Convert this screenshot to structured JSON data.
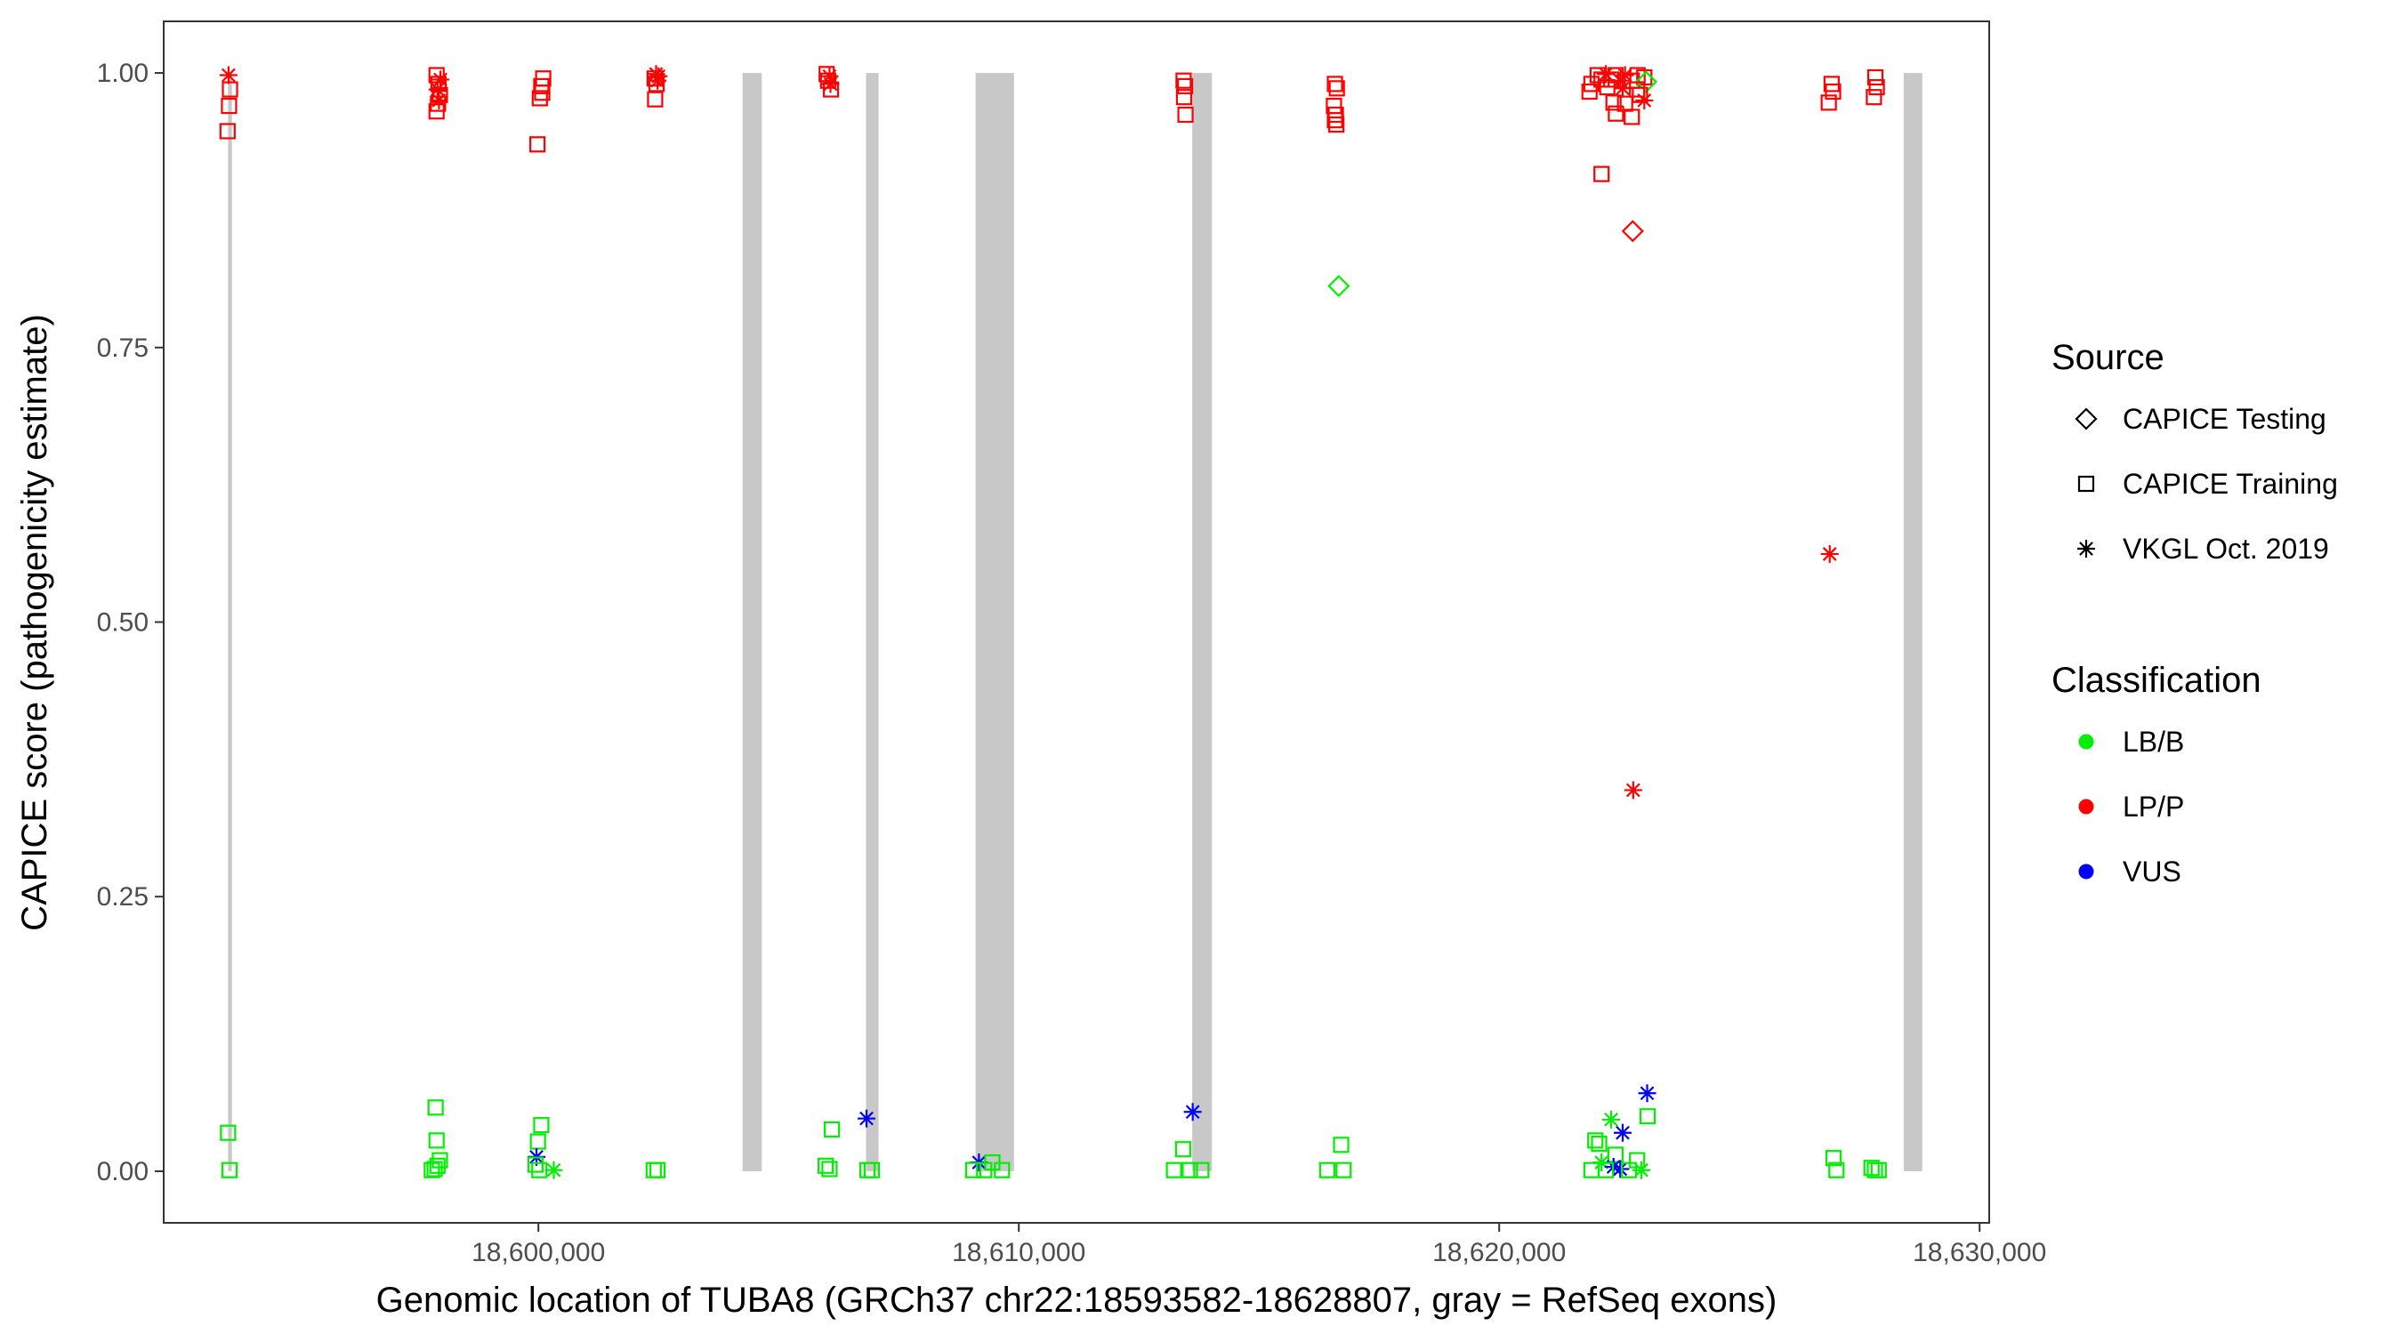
{
  "chart_data": {
    "type": "scatter",
    "xlabel": "Genomic location of TUBA8 (GRCh37 chr22:18593582-18628807, gray = RefSeq exons)",
    "ylabel": "CAPICE score (pathogenicity estimate)",
    "xlim": [
      18592200,
      18630200
    ],
    "ylim": [
      -0.047,
      1.047
    ],
    "x_ticks": [
      18600000,
      18610000,
      18620000,
      18630000
    ],
    "x_tick_labels": [
      "18,600,000",
      "18,610,000",
      "18,620,000",
      "18,630,000"
    ],
    "y_ticks": [
      0,
      0.25,
      0.5,
      0.75,
      1
    ],
    "y_tick_labels": [
      "0.00",
      "0.25",
      "0.50",
      "0.75",
      "1.00"
    ],
    "grid": false,
    "exon_color": "#c8c8c8",
    "exons": [
      {
        "start": 18593540,
        "end": 18593620
      },
      {
        "start": 18604250,
        "end": 18604650
      },
      {
        "start": 18606820,
        "end": 18607080
      },
      {
        "start": 18609100,
        "end": 18609900
      },
      {
        "start": 18613610,
        "end": 18614020
      },
      {
        "start": 18628420,
        "end": 18628807
      }
    ],
    "legend": {
      "position": "right",
      "source_title": "Source",
      "source_items": [
        {
          "label": "CAPICE Testing",
          "shape": "diamond"
        },
        {
          "label": "CAPICE Training",
          "shape": "square"
        },
        {
          "label": "VKGL Oct. 2019",
          "shape": "asterisk"
        }
      ],
      "class_title": "Classification",
      "class_items": [
        {
          "label": "LB/B",
          "color": "#00ee00"
        },
        {
          "label": "LP/P",
          "color": "#ff0000"
        },
        {
          "label": "VUS",
          "color": "#0000ff"
        }
      ]
    },
    "colors": {
      "LB/B": "#00ee00",
      "LP/P": "#ff0000",
      "VUS": "#0000ff"
    },
    "points": [
      {
        "x": 18593550,
        "y": 0.998,
        "shape": "asterisk",
        "class": "LP/P"
      },
      {
        "x": 18593580,
        "y": 0.985,
        "shape": "square",
        "class": "LP/P"
      },
      {
        "x": 18593560,
        "y": 0.97,
        "shape": "square",
        "class": "LP/P"
      },
      {
        "x": 18593530,
        "y": 0.947,
        "shape": "square",
        "class": "LP/P"
      },
      {
        "x": 18593540,
        "y": 0.035,
        "shape": "square",
        "class": "LB/B"
      },
      {
        "x": 18593570,
        "y": 0.001,
        "shape": "square",
        "class": "LB/B"
      },
      {
        "x": 18597880,
        "y": 0.998,
        "shape": "square",
        "class": "LP/P"
      },
      {
        "x": 18597960,
        "y": 0.994,
        "shape": "asterisk",
        "class": "LP/P"
      },
      {
        "x": 18597920,
        "y": 0.99,
        "shape": "square",
        "class": "LP/P"
      },
      {
        "x": 18597900,
        "y": 0.985,
        "shape": "asterisk",
        "class": "LP/P"
      },
      {
        "x": 18597950,
        "y": 0.98,
        "shape": "square",
        "class": "LP/P"
      },
      {
        "x": 18597930,
        "y": 0.975,
        "shape": "asterisk",
        "class": "LP/P"
      },
      {
        "x": 18597910,
        "y": 0.972,
        "shape": "square",
        "class": "LP/P"
      },
      {
        "x": 18597880,
        "y": 0.965,
        "shape": "square",
        "class": "LP/P"
      },
      {
        "x": 18597860,
        "y": 0.058,
        "shape": "square",
        "class": "LB/B"
      },
      {
        "x": 18597880,
        "y": 0.028,
        "shape": "square",
        "class": "LB/B"
      },
      {
        "x": 18597950,
        "y": 0.01,
        "shape": "square",
        "class": "LB/B"
      },
      {
        "x": 18597900,
        "y": 0.005,
        "shape": "square",
        "class": "LB/B"
      },
      {
        "x": 18597840,
        "y": 0.002,
        "shape": "square",
        "class": "LB/B"
      },
      {
        "x": 18597780,
        "y": 0.001,
        "shape": "square",
        "class": "LB/B"
      },
      {
        "x": 18600100,
        "y": 0.995,
        "shape": "square",
        "class": "LP/P"
      },
      {
        "x": 18600060,
        "y": 0.988,
        "shape": "square",
        "class": "LP/P"
      },
      {
        "x": 18600080,
        "y": 0.982,
        "shape": "square",
        "class": "LP/P"
      },
      {
        "x": 18600030,
        "y": 0.977,
        "shape": "square",
        "class": "LP/P"
      },
      {
        "x": 18599980,
        "y": 0.935,
        "shape": "square",
        "class": "LP/P"
      },
      {
        "x": 18600060,
        "y": 0.042,
        "shape": "square",
        "class": "LB/B"
      },
      {
        "x": 18599990,
        "y": 0.027,
        "shape": "square",
        "class": "LB/B"
      },
      {
        "x": 18599960,
        "y": 0.013,
        "shape": "asterisk",
        "class": "VUS"
      },
      {
        "x": 18599940,
        "y": 0.006,
        "shape": "square",
        "class": "LB/B"
      },
      {
        "x": 18600020,
        "y": 0.001,
        "shape": "square",
        "class": "LB/B"
      },
      {
        "x": 18600320,
        "y": 0.001,
        "shape": "asterisk",
        "class": "LB/B"
      },
      {
        "x": 18602450,
        "y": 0.999,
        "shape": "asterisk",
        "class": "LP/P"
      },
      {
        "x": 18602500,
        "y": 0.997,
        "shape": "asterisk",
        "class": "LP/P"
      },
      {
        "x": 18602420,
        "y": 0.995,
        "shape": "square",
        "class": "LP/P"
      },
      {
        "x": 18602480,
        "y": 0.993,
        "shape": "asterisk",
        "class": "LP/P"
      },
      {
        "x": 18602460,
        "y": 0.99,
        "shape": "square",
        "class": "LP/P"
      },
      {
        "x": 18602430,
        "y": 0.976,
        "shape": "square",
        "class": "LP/P"
      },
      {
        "x": 18602400,
        "y": 0.001,
        "shape": "square",
        "class": "LB/B"
      },
      {
        "x": 18602480,
        "y": 0.001,
        "shape": "square",
        "class": "LB/B"
      },
      {
        "x": 18606000,
        "y": 0.999,
        "shape": "square",
        "class": "LP/P"
      },
      {
        "x": 18606060,
        "y": 0.997,
        "shape": "asterisk",
        "class": "LP/P"
      },
      {
        "x": 18606030,
        "y": 0.993,
        "shape": "square",
        "class": "LP/P"
      },
      {
        "x": 18606080,
        "y": 0.99,
        "shape": "asterisk",
        "class": "LP/P"
      },
      {
        "x": 18606090,
        "y": 0.985,
        "shape": "square",
        "class": "LP/P"
      },
      {
        "x": 18606110,
        "y": 0.038,
        "shape": "square",
        "class": "LB/B"
      },
      {
        "x": 18605980,
        "y": 0.005,
        "shape": "square",
        "class": "LB/B"
      },
      {
        "x": 18606060,
        "y": 0.002,
        "shape": "square",
        "class": "LB/B"
      },
      {
        "x": 18606830,
        "y": 0.048,
        "shape": "asterisk",
        "class": "VUS"
      },
      {
        "x": 18606850,
        "y": 0.001,
        "shape": "square",
        "class": "LB/B"
      },
      {
        "x": 18606940,
        "y": 0.001,
        "shape": "square",
        "class": "LB/B"
      },
      {
        "x": 18609170,
        "y": 0.008,
        "shape": "asterisk",
        "class": "VUS"
      },
      {
        "x": 18609450,
        "y": 0.008,
        "shape": "square",
        "class": "LB/B"
      },
      {
        "x": 18609280,
        "y": 0.001,
        "shape": "square",
        "class": "LB/B"
      },
      {
        "x": 18609650,
        "y": 0.001,
        "shape": "square",
        "class": "LB/B"
      },
      {
        "x": 18609050,
        "y": 0.001,
        "shape": "square",
        "class": "LB/B"
      },
      {
        "x": 18613430,
        "y": 0.993,
        "shape": "square",
        "class": "LP/P"
      },
      {
        "x": 18613460,
        "y": 0.988,
        "shape": "square",
        "class": "LP/P"
      },
      {
        "x": 18613440,
        "y": 0.978,
        "shape": "square",
        "class": "LP/P"
      },
      {
        "x": 18613470,
        "y": 0.962,
        "shape": "square",
        "class": "LP/P"
      },
      {
        "x": 18613620,
        "y": 0.054,
        "shape": "asterisk",
        "class": "VUS"
      },
      {
        "x": 18613420,
        "y": 0.02,
        "shape": "square",
        "class": "LB/B"
      },
      {
        "x": 18613230,
        "y": 0.001,
        "shape": "square",
        "class": "LB/B"
      },
      {
        "x": 18613560,
        "y": 0.001,
        "shape": "square",
        "class": "LB/B"
      },
      {
        "x": 18613800,
        "y": 0.001,
        "shape": "square",
        "class": "LB/B"
      },
      {
        "x": 18616580,
        "y": 0.99,
        "shape": "square",
        "class": "LP/P"
      },
      {
        "x": 18616620,
        "y": 0.986,
        "shape": "square",
        "class": "LP/P"
      },
      {
        "x": 18616560,
        "y": 0.97,
        "shape": "square",
        "class": "LP/P"
      },
      {
        "x": 18616600,
        "y": 0.962,
        "shape": "square",
        "class": "LP/P"
      },
      {
        "x": 18616580,
        "y": 0.957,
        "shape": "square",
        "class": "LP/P"
      },
      {
        "x": 18616610,
        "y": 0.953,
        "shape": "square",
        "class": "LP/P"
      },
      {
        "x": 18616660,
        "y": 0.806,
        "shape": "diamond",
        "class": "LB/B"
      },
      {
        "x": 18616710,
        "y": 0.024,
        "shape": "square",
        "class": "LB/B"
      },
      {
        "x": 18616420,
        "y": 0.001,
        "shape": "square",
        "class": "LB/B"
      },
      {
        "x": 18616760,
        "y": 0.001,
        "shape": "square",
        "class": "LB/B"
      },
      {
        "x": 18622050,
        "y": 0.998,
        "shape": "square",
        "class": "LP/P"
      },
      {
        "x": 18622220,
        "y": 0.999,
        "shape": "asterisk",
        "class": "LP/P"
      },
      {
        "x": 18622420,
        "y": 0.998,
        "shape": "square",
        "class": "LP/P"
      },
      {
        "x": 18622620,
        "y": 0.998,
        "shape": "asterisk",
        "class": "LP/P"
      },
      {
        "x": 18622880,
        "y": 0.998,
        "shape": "square",
        "class": "LP/P"
      },
      {
        "x": 18623020,
        "y": 0.996,
        "shape": "square",
        "class": "LP/P"
      },
      {
        "x": 18622130,
        "y": 0.994,
        "shape": "square",
        "class": "LP/P"
      },
      {
        "x": 18622330,
        "y": 0.994,
        "shape": "square",
        "class": "LP/P"
      },
      {
        "x": 18622520,
        "y": 0.993,
        "shape": "asterisk",
        "class": "LP/P"
      },
      {
        "x": 18622760,
        "y": 0.993,
        "shape": "square",
        "class": "LP/P"
      },
      {
        "x": 18623060,
        "y": 0.992,
        "shape": "diamond",
        "class": "LB/B"
      },
      {
        "x": 18621920,
        "y": 0.99,
        "shape": "square",
        "class": "LP/P"
      },
      {
        "x": 18622250,
        "y": 0.987,
        "shape": "square",
        "class": "LP/P"
      },
      {
        "x": 18622570,
        "y": 0.986,
        "shape": "asterisk",
        "class": "LP/P"
      },
      {
        "x": 18622870,
        "y": 0.985,
        "shape": "square",
        "class": "LP/P"
      },
      {
        "x": 18621880,
        "y": 0.983,
        "shape": "square",
        "class": "LP/P"
      },
      {
        "x": 18622930,
        "y": 0.98,
        "shape": "square",
        "class": "LP/P"
      },
      {
        "x": 18623020,
        "y": 0.975,
        "shape": "asterisk",
        "class": "LP/P"
      },
      {
        "x": 18622380,
        "y": 0.973,
        "shape": "square",
        "class": "LP/P"
      },
      {
        "x": 18622620,
        "y": 0.972,
        "shape": "square",
        "class": "LP/P"
      },
      {
        "x": 18622430,
        "y": 0.963,
        "shape": "square",
        "class": "LP/P"
      },
      {
        "x": 18622760,
        "y": 0.96,
        "shape": "square",
        "class": "LP/P"
      },
      {
        "x": 18622130,
        "y": 0.908,
        "shape": "square",
        "class": "LP/P"
      },
      {
        "x": 18622780,
        "y": 0.856,
        "shape": "diamond",
        "class": "LP/P"
      },
      {
        "x": 18622790,
        "y": 0.347,
        "shape": "asterisk",
        "class": "LP/P"
      },
      {
        "x": 18623080,
        "y": 0.071,
        "shape": "asterisk",
        "class": "VUS"
      },
      {
        "x": 18623090,
        "y": 0.05,
        "shape": "square",
        "class": "LB/B"
      },
      {
        "x": 18622330,
        "y": 0.047,
        "shape": "asterisk",
        "class": "LB/B"
      },
      {
        "x": 18622570,
        "y": 0.035,
        "shape": "asterisk",
        "class": "VUS"
      },
      {
        "x": 18622000,
        "y": 0.028,
        "shape": "square",
        "class": "LB/B"
      },
      {
        "x": 18622080,
        "y": 0.025,
        "shape": "square",
        "class": "LB/B"
      },
      {
        "x": 18622420,
        "y": 0.015,
        "shape": "square",
        "class": "LB/B"
      },
      {
        "x": 18622870,
        "y": 0.01,
        "shape": "square",
        "class": "LB/B"
      },
      {
        "x": 18622130,
        "y": 0.008,
        "shape": "asterisk",
        "class": "LB/B"
      },
      {
        "x": 18622380,
        "y": 0.004,
        "shape": "asterisk",
        "class": "VUS"
      },
      {
        "x": 18622520,
        "y": 0.002,
        "shape": "asterisk",
        "class": "VUS"
      },
      {
        "x": 18621920,
        "y": 0.001,
        "shape": "square",
        "class": "LB/B"
      },
      {
        "x": 18622220,
        "y": 0.001,
        "shape": "square",
        "class": "LB/B"
      },
      {
        "x": 18622700,
        "y": 0.001,
        "shape": "square",
        "class": "LB/B"
      },
      {
        "x": 18622960,
        "y": 0.001,
        "shape": "asterisk",
        "class": "LB/B"
      },
      {
        "x": 18626920,
        "y": 0.99,
        "shape": "square",
        "class": "LP/P"
      },
      {
        "x": 18626950,
        "y": 0.983,
        "shape": "square",
        "class": "LP/P"
      },
      {
        "x": 18626860,
        "y": 0.973,
        "shape": "square",
        "class": "LP/P"
      },
      {
        "x": 18626880,
        "y": 0.562,
        "shape": "asterisk",
        "class": "LP/P"
      },
      {
        "x": 18626960,
        "y": 0.012,
        "shape": "square",
        "class": "LB/B"
      },
      {
        "x": 18627020,
        "y": 0.001,
        "shape": "square",
        "class": "LB/B"
      },
      {
        "x": 18627830,
        "y": 0.996,
        "shape": "square",
        "class": "LP/P"
      },
      {
        "x": 18627860,
        "y": 0.987,
        "shape": "square",
        "class": "LP/P"
      },
      {
        "x": 18627800,
        "y": 0.978,
        "shape": "square",
        "class": "LP/P"
      },
      {
        "x": 18627750,
        "y": 0.003,
        "shape": "square",
        "class": "LB/B"
      },
      {
        "x": 18627820,
        "y": 0.001,
        "shape": "square",
        "class": "LB/B"
      },
      {
        "x": 18627900,
        "y": 0.001,
        "shape": "square",
        "class": "LB/B"
      }
    ]
  }
}
